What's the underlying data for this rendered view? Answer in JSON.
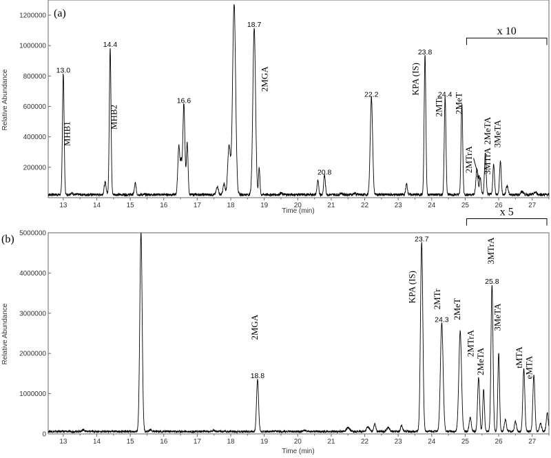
{
  "chart_data": [
    {
      "type": "line",
      "panel_label": "(a)",
      "xlabel": "Time (min)",
      "ylabel": "Relative Abundance",
      "xlim": [
        12.55,
        27.5
      ],
      "ylim": [
        0,
        1300000
      ],
      "x_ticks": [
        "13",
        "14",
        "15",
        "16",
        "17",
        "18",
        "19",
        "20",
        "21",
        "22",
        "23",
        "24",
        "25",
        "26",
        "27"
      ],
      "y_ticks": [
        "200000",
        "400000",
        "600000",
        "800000",
        "1000000",
        "1200000"
      ],
      "y_tick_values": [
        200000,
        400000,
        600000,
        800000,
        1000000,
        1200000
      ],
      "baseline": 20000,
      "peaks": [
        {
          "x": 13.0,
          "y": 800000,
          "w": 0.025
        },
        {
          "x": 13.25,
          "y": 10000,
          "w": 0.04
        },
        {
          "x": 14.25,
          "y": 80000,
          "w": 0.03
        },
        {
          "x": 14.4,
          "y": 970000,
          "w": 0.025
        },
        {
          "x": 15.15,
          "y": 75000,
          "w": 0.025
        },
        {
          "x": 16.45,
          "y": 320000,
          "w": 0.03
        },
        {
          "x": 16.52,
          "y": 200000,
          "w": 0.025
        },
        {
          "x": 16.6,
          "y": 600000,
          "w": 0.03
        },
        {
          "x": 16.7,
          "y": 340000,
          "w": 0.025
        },
        {
          "x": 17.6,
          "y": 55000,
          "w": 0.03
        },
        {
          "x": 17.8,
          "y": 70000,
          "w": 0.03
        },
        {
          "x": 17.95,
          "y": 320000,
          "w": 0.04
        },
        {
          "x": 18.1,
          "y": 1260000,
          "w": 0.045
        },
        {
          "x": 18.7,
          "y": 1100000,
          "w": 0.04
        },
        {
          "x": 18.85,
          "y": 180000,
          "w": 0.02
        },
        {
          "x": 19.5,
          "y": 10000,
          "w": 0.03
        },
        {
          "x": 20.6,
          "y": 90000,
          "w": 0.025
        },
        {
          "x": 20.8,
          "y": 130000,
          "w": 0.025
        },
        {
          "x": 21.3,
          "y": 10000,
          "w": 0.03
        },
        {
          "x": 21.7,
          "y": 10000,
          "w": 0.03
        },
        {
          "x": 22.2,
          "y": 640000,
          "w": 0.035
        },
        {
          "x": 23.25,
          "y": 70000,
          "w": 0.025
        },
        {
          "x": 23.8,
          "y": 920000,
          "w": 0.025
        },
        {
          "x": 24.4,
          "y": 640000,
          "w": 0.025
        },
        {
          "x": 24.9,
          "y": 600000,
          "w": 0.025
        },
        {
          "x": 25.35,
          "y": 170000,
          "w": 0.03
        },
        {
          "x": 25.45,
          "y": 110000,
          "w": 0.025
        },
        {
          "x": 25.6,
          "y": 270000,
          "w": 0.025
        },
        {
          "x": 25.85,
          "y": 200000,
          "w": 0.025
        },
        {
          "x": 26.05,
          "y": 220000,
          "w": 0.025
        },
        {
          "x": 26.25,
          "y": 60000,
          "w": 0.03
        },
        {
          "x": 26.7,
          "y": 20000,
          "w": 0.04
        },
        {
          "x": 27.1,
          "y": 15000,
          "w": 0.04
        }
      ],
      "peak_labels": [
        {
          "text": "13.0",
          "x": 13.0,
          "y": 800000
        },
        {
          "text": "14.4",
          "x": 14.4,
          "y": 970000
        },
        {
          "text": "16.6",
          "x": 16.6,
          "y": 600000
        },
        {
          "text": "18.7",
          "x": 18.7,
          "y": 1100000
        },
        {
          "text": "20.8",
          "x": 20.8,
          "y": 130000
        },
        {
          "text": "22.2",
          "x": 22.2,
          "y": 640000
        },
        {
          "text": "23.8",
          "x": 23.8,
          "y": 920000
        },
        {
          "text": "24.4",
          "x": 24.4,
          "y": 640000
        }
      ],
      "compound_labels": [
        {
          "text": "MHB1",
          "x": 13.2,
          "y": 420000
        },
        {
          "text": "MHB2",
          "x": 14.6,
          "y": 530000
        },
        {
          "text": "2MGA",
          "x": 19.1,
          "y": 780000
        },
        {
          "text": "KPA (IS)",
          "x": 23.6,
          "y": 780000
        },
        {
          "text": "2MTr",
          "x": 24.3,
          "y": 600000
        },
        {
          "text": "2MeT",
          "x": 24.9,
          "y": 620000
        },
        {
          "text": "2MTrA",
          "x": 25.2,
          "y": 250000
        },
        {
          "text": "2MeTA",
          "x": 25.75,
          "y": 440000
        },
        {
          "text": "3MTrA",
          "x": 25.75,
          "y": 240000
        },
        {
          "text": "3MeTA",
          "x": 26.05,
          "y": 420000
        }
      ],
      "arrow": {
        "from_x": 25.25,
        "from_y": 260000,
        "to_x": 25.42,
        "to_y": 120000
      },
      "multiplier": {
        "text": "x 10",
        "x_start": 25.0,
        "x_end": 27.5,
        "y": 1050000
      }
    },
    {
      "type": "line",
      "panel_label": "(b)",
      "xlabel": "Time (min)",
      "ylabel": "Relative Abundance",
      "xlim": [
        12.55,
        27.5
      ],
      "ylim": [
        0,
        5000000
      ],
      "x_ticks": [
        "13",
        "14",
        "15",
        "16",
        "17",
        "18",
        "19",
        "20",
        "21",
        "22",
        "23",
        "24",
        "25",
        "26",
        "27"
      ],
      "y_ticks": [
        "0",
        "1000000",
        "2000000",
        "3000000",
        "4000000",
        "5000000"
      ],
      "y_tick_values": [
        0,
        1000000,
        2000000,
        3000000,
        4000000,
        5000000
      ],
      "baseline": 60000,
      "peaks": [
        {
          "x": 13.6,
          "y": 40000,
          "w": 0.04
        },
        {
          "x": 15.32,
          "y": 4950000,
          "w": 0.035
        },
        {
          "x": 15.6,
          "y": 50000,
          "w": 0.03
        },
        {
          "x": 17.5,
          "y": 40000,
          "w": 0.03
        },
        {
          "x": 18.8,
          "y": 1300000,
          "w": 0.03
        },
        {
          "x": 20.2,
          "y": 30000,
          "w": 0.04
        },
        {
          "x": 21.5,
          "y": 100000,
          "w": 0.05
        },
        {
          "x": 22.1,
          "y": 120000,
          "w": 0.04
        },
        {
          "x": 22.3,
          "y": 200000,
          "w": 0.03
        },
        {
          "x": 22.7,
          "y": 100000,
          "w": 0.04
        },
        {
          "x": 23.1,
          "y": 150000,
          "w": 0.03
        },
        {
          "x": 23.7,
          "y": 4700000,
          "w": 0.035
        },
        {
          "x": 24.3,
          "y": 2700000,
          "w": 0.04
        },
        {
          "x": 24.85,
          "y": 2500000,
          "w": 0.04
        },
        {
          "x": 25.15,
          "y": 350000,
          "w": 0.03
        },
        {
          "x": 25.4,
          "y": 1350000,
          "w": 0.03
        },
        {
          "x": 25.55,
          "y": 1050000,
          "w": 0.025
        },
        {
          "x": 25.8,
          "y": 3650000,
          "w": 0.03
        },
        {
          "x": 26.0,
          "y": 1950000,
          "w": 0.025
        },
        {
          "x": 26.2,
          "y": 300000,
          "w": 0.03
        },
        {
          "x": 26.5,
          "y": 250000,
          "w": 0.03
        },
        {
          "x": 26.75,
          "y": 1550000,
          "w": 0.03
        },
        {
          "x": 27.05,
          "y": 1400000,
          "w": 0.03
        },
        {
          "x": 27.25,
          "y": 200000,
          "w": 0.03
        },
        {
          "x": 27.45,
          "y": 450000,
          "w": 0.03
        }
      ],
      "peak_labels": [
        {
          "text": "18.8",
          "x": 18.8,
          "y": 1300000
        },
        {
          "text": "23.7",
          "x": 23.7,
          "y": 4700000
        },
        {
          "text": "24.3",
          "x": 24.3,
          "y": 2700000
        },
        {
          "text": "25.8",
          "x": 25.8,
          "y": 3650000
        }
      ],
      "compound_labels": [
        {
          "text": "2MGA",
          "x": 18.8,
          "y": 2650000
        },
        {
          "text": "KPA (IS)",
          "x": 23.5,
          "y": 3650000
        },
        {
          "text": "2MTr",
          "x": 24.25,
          "y": 3350000
        },
        {
          "text": "2MeT",
          "x": 24.85,
          "y": 3100000
        },
        {
          "text": "2MTrA",
          "x": 25.25,
          "y": 2250000
        },
        {
          "text": "2MeTA",
          "x": 25.55,
          "y": 1800000
        },
        {
          "text": "3MTrA",
          "x": 25.85,
          "y": 4550000
        },
        {
          "text": "3MeTA",
          "x": 26.05,
          "y": 2900000
        },
        {
          "text": "tMTA",
          "x": 26.7,
          "y": 1900000
        },
        {
          "text": "eMTA",
          "x": 27.0,
          "y": 1650000
        }
      ],
      "multiplier": {
        "text": "x 5",
        "x_start": 25.0,
        "x_end": 27.5,
        "y": 5350000
      }
    }
  ]
}
